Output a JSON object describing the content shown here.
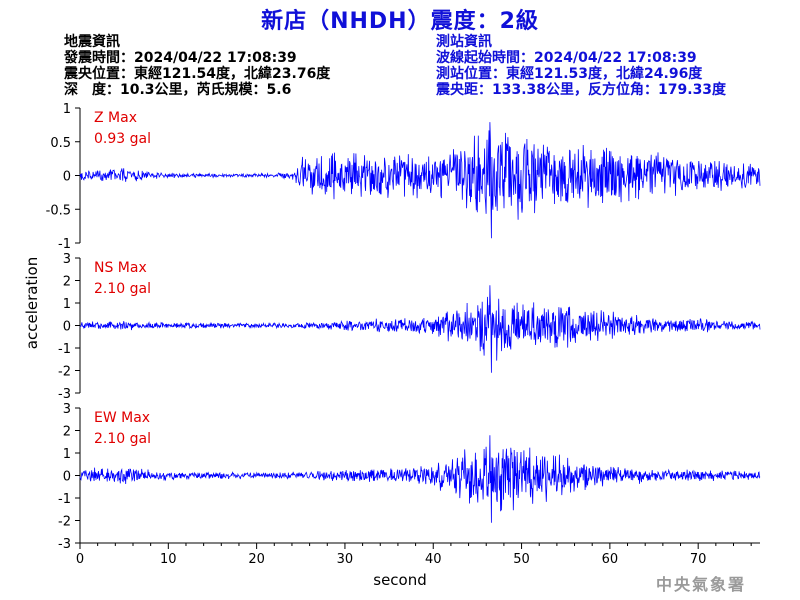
{
  "header": {
    "title": "新店（NHDH）震度：2級"
  },
  "earthquake_info": {
    "heading": "地震資訊",
    "origin_time": "發震時間：2024/04/22 17:08:39",
    "epicenter": "震央位置：東經121.54度，北緯23.76度",
    "depth_magnitude": "深　度：10.3公里，芮氏規模：5.6"
  },
  "station_info": {
    "heading": "測站資訊",
    "wave_start_time": "波線起始時間：2024/04/22 17:08:39",
    "station_location": "測站位置：東經121.53度，北緯24.96度",
    "distance_azimuth": "震央距：133.38公里，反方位角：179.33度"
  },
  "watermark": "中央氣象署",
  "colors": {
    "trace": "#0000ff",
    "max_label": "#e00000",
    "station_text": "#1010d8",
    "axis": "#000000"
  },
  "chart_data": {
    "type": "line",
    "xlabel": "second",
    "ylabel": "acceleration",
    "xlim": [
      0,
      77
    ],
    "x_ticks": [
      0,
      10,
      20,
      30,
      40,
      50,
      60,
      70
    ],
    "x_tick_labels": [
      "0",
      "10",
      "20",
      "30",
      "40",
      "50",
      "60",
      "70"
    ],
    "grid": false,
    "panels": [
      {
        "component": "Z",
        "max_label": "Z Max",
        "max_value": "0.93 gal",
        "ylim": [
          -1,
          1
        ],
        "y_ticks": [
          -1,
          -0.5,
          0,
          0.5,
          1
        ],
        "y_tick_labels": [
          "-1",
          "-0.5",
          "0",
          "0.5",
          "1"
        ],
        "peak": 0.93,
        "envelope": [
          [
            0,
            0.1
          ],
          [
            2,
            0.14
          ],
          [
            5,
            0.12
          ],
          [
            8,
            0.06
          ],
          [
            12,
            0.03
          ],
          [
            20,
            0.03
          ],
          [
            24,
            0.06
          ],
          [
            25,
            0.3
          ],
          [
            28,
            0.4
          ],
          [
            32,
            0.42
          ],
          [
            36,
            0.35
          ],
          [
            40,
            0.4
          ],
          [
            43,
            0.55
          ],
          [
            46,
            0.75
          ],
          [
            47,
            0.8
          ],
          [
            50,
            0.7
          ],
          [
            54,
            0.55
          ],
          [
            58,
            0.5
          ],
          [
            62,
            0.48
          ],
          [
            66,
            0.4
          ],
          [
            70,
            0.3
          ],
          [
            74,
            0.25
          ],
          [
            77,
            0.2
          ]
        ]
      },
      {
        "component": "NS",
        "max_label": "NS Max",
        "max_value": "2.10 gal",
        "ylim": [
          -3,
          3
        ],
        "y_ticks": [
          -3,
          -2,
          -1,
          0,
          1,
          2,
          3
        ],
        "y_tick_labels": [
          "-3",
          "-2",
          "-1",
          "0",
          "1",
          "2",
          "3"
        ],
        "peak": 2.1,
        "envelope": [
          [
            0,
            0.18
          ],
          [
            5,
            0.22
          ],
          [
            10,
            0.15
          ],
          [
            20,
            0.12
          ],
          [
            26,
            0.15
          ],
          [
            30,
            0.25
          ],
          [
            35,
            0.35
          ],
          [
            40,
            0.5
          ],
          [
            43,
            0.9
          ],
          [
            45,
            1.4
          ],
          [
            46.5,
            1.9
          ],
          [
            48,
            1.5
          ],
          [
            50,
            1.1
          ],
          [
            53,
            1.1
          ],
          [
            56,
            1.0
          ],
          [
            60,
            0.7
          ],
          [
            65,
            0.45
          ],
          [
            70,
            0.35
          ],
          [
            77,
            0.2
          ]
        ]
      },
      {
        "component": "EW",
        "max_label": "EW Max",
        "max_value": "2.10 gal",
        "ylim": [
          -3,
          3
        ],
        "y_ticks": [
          -3,
          -2,
          -1,
          0,
          1,
          2,
          3
        ],
        "y_tick_labels": [
          "-3",
          "-2",
          "-1",
          "0",
          "1",
          "2",
          "3"
        ],
        "peak": 2.1,
        "envelope": [
          [
            0,
            0.25
          ],
          [
            3,
            0.5
          ],
          [
            6,
            0.45
          ],
          [
            10,
            0.2
          ],
          [
            20,
            0.15
          ],
          [
            26,
            0.2
          ],
          [
            30,
            0.3
          ],
          [
            35,
            0.35
          ],
          [
            40,
            0.6
          ],
          [
            42,
            1.0
          ],
          [
            45,
            1.6
          ],
          [
            47,
            2.0
          ],
          [
            49,
            1.7
          ],
          [
            52,
            1.4
          ],
          [
            55,
            0.9
          ],
          [
            60,
            0.5
          ],
          [
            65,
            0.35
          ],
          [
            70,
            0.3
          ],
          [
            77,
            0.2
          ]
        ]
      }
    ]
  }
}
